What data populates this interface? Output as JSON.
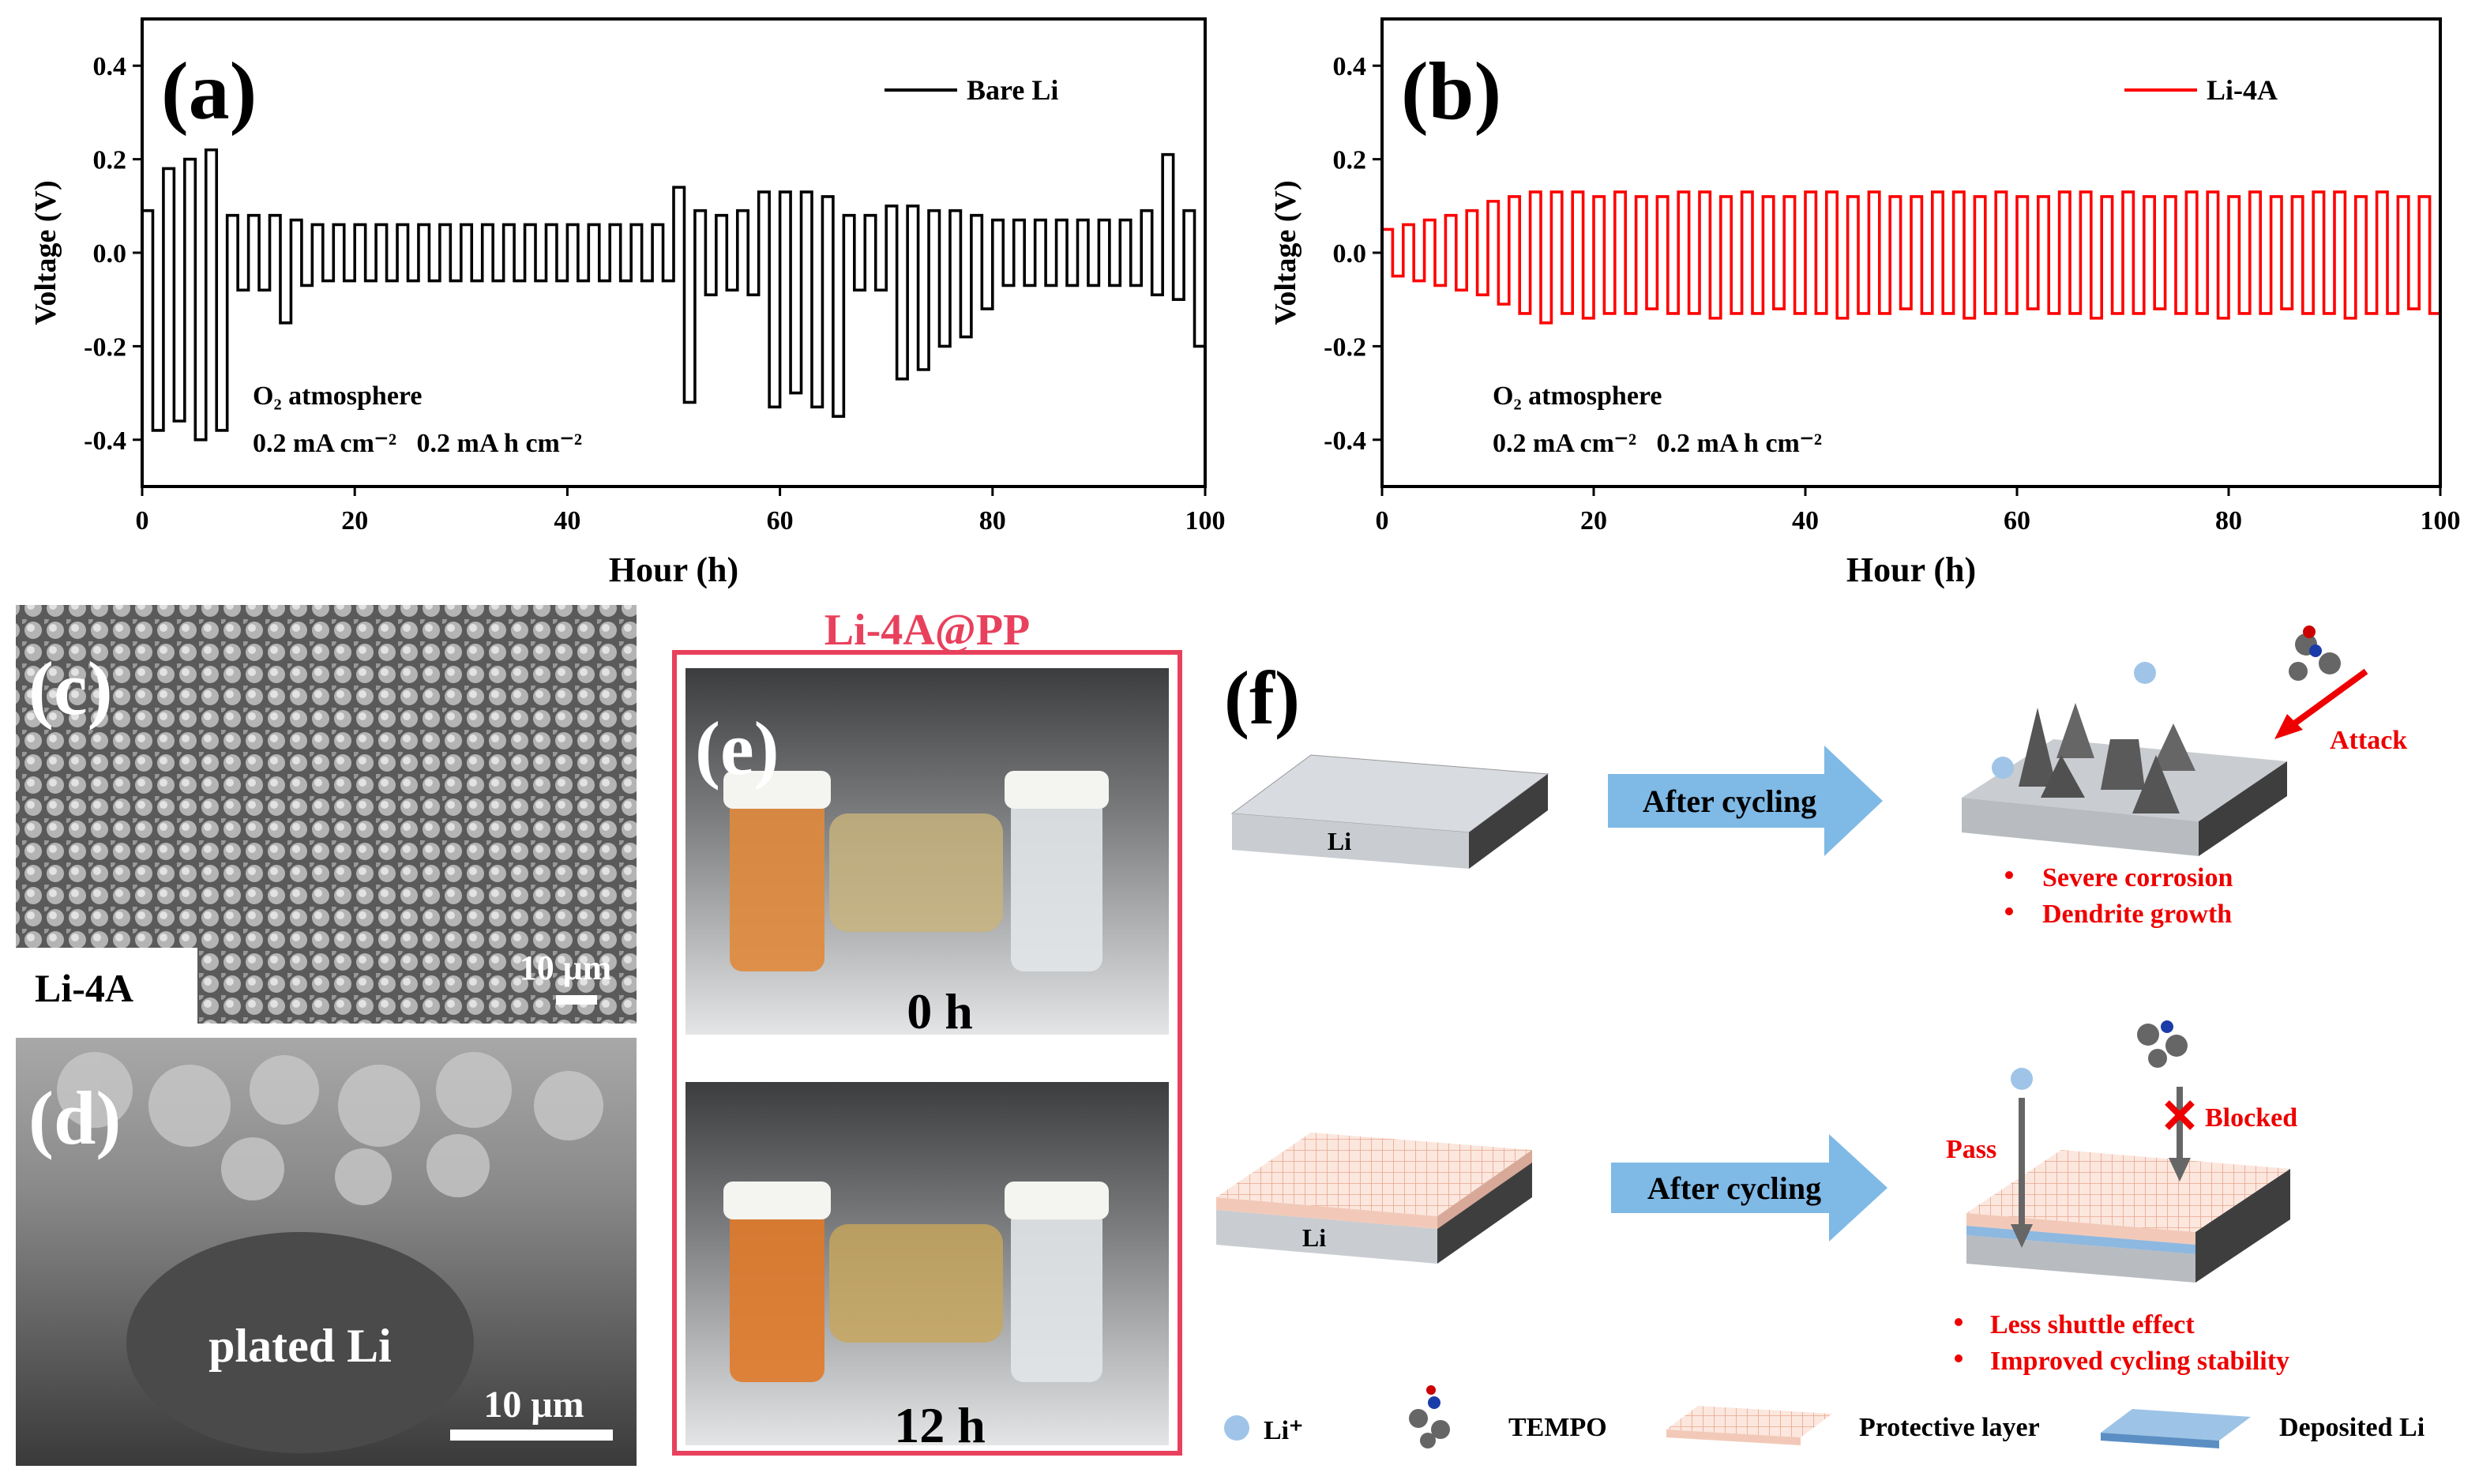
{
  "chart_data": [
    {
      "type": "line",
      "panel_label": "(a)",
      "ylabel": "Voltage (V)",
      "xlabel": "Hour (h)",
      "step": true,
      "x": [
        0,
        1,
        2,
        3,
        4,
        5,
        6,
        7,
        8,
        9,
        10,
        11,
        12,
        13,
        14,
        15,
        16,
        17,
        18,
        19,
        20,
        21,
        22,
        23,
        24,
        25,
        26,
        27,
        28,
        29,
        30,
        31,
        32,
        33,
        34,
        35,
        36,
        37,
        38,
        39,
        40,
        41,
        42,
        43,
        44,
        45,
        46,
        47,
        48,
        49,
        50,
        51,
        52,
        53,
        54,
        55,
        56,
        57,
        58,
        59,
        60,
        61,
        62,
        63,
        64,
        65,
        66,
        67,
        68,
        69,
        70,
        71,
        72,
        73,
        74,
        75,
        76,
        77,
        78,
        79,
        80,
        81,
        82,
        83,
        84,
        85,
        86,
        87,
        88,
        89,
        90,
        91,
        92,
        93,
        94,
        95,
        96,
        97,
        98,
        99
      ],
      "series": [
        {
          "name": "Bare Li",
          "color": "#000000",
          "values": [
            0.09,
            -0.38,
            0.18,
            -0.36,
            0.2,
            -0.4,
            0.22,
            -0.38,
            0.08,
            -0.08,
            0.08,
            -0.08,
            0.08,
            -0.15,
            0.07,
            -0.07,
            0.06,
            -0.06,
            0.06,
            -0.06,
            0.06,
            -0.06,
            0.06,
            -0.06,
            0.06,
            -0.06,
            0.06,
            -0.06,
            0.06,
            -0.06,
            0.06,
            -0.06,
            0.06,
            -0.06,
            0.06,
            -0.06,
            0.06,
            -0.06,
            0.06,
            -0.06,
            0.06,
            -0.06,
            0.06,
            -0.06,
            0.06,
            -0.06,
            0.06,
            -0.06,
            0.06,
            -0.06,
            0.14,
            -0.32,
            0.09,
            -0.09,
            0.08,
            -0.08,
            0.09,
            -0.09,
            0.13,
            -0.33,
            0.13,
            -0.3,
            0.13,
            -0.33,
            0.12,
            -0.35,
            0.08,
            -0.08,
            0.08,
            -0.08,
            0.1,
            -0.27,
            0.1,
            -0.25,
            0.09,
            -0.2,
            0.09,
            -0.18,
            0.08,
            -0.12,
            0.07,
            -0.07,
            0.07,
            -0.07,
            0.07,
            -0.07,
            0.07,
            -0.07,
            0.07,
            -0.07,
            0.07,
            -0.07,
            0.07,
            -0.07,
            0.09,
            -0.09,
            0.21,
            -0.1,
            0.09,
            -0.2
          ]
        }
      ],
      "xlim": [
        0,
        100
      ],
      "ylim": [
        -0.5,
        0.5
      ],
      "xticks": [
        0,
        20,
        40,
        60,
        80,
        100
      ],
      "yticks": [
        -0.4,
        -0.2,
        {
          "value": 0,
          "label": "0.0"
        },
        0.2,
        0.4
      ],
      "annotations": [
        "O₂ atmosphere",
        "0.2 mA cm⁻²   0.2 mA h cm⁻²"
      ]
    },
    {
      "type": "line",
      "panel_label": "(b)",
      "ylabel": "Voltage (V)",
      "xlabel": "Hour (h)",
      "step": true,
      "x": [
        0,
        1,
        2,
        3,
        4,
        5,
        6,
        7,
        8,
        9,
        10,
        11,
        12,
        13,
        14,
        15,
        16,
        17,
        18,
        19,
        20,
        21,
        22,
        23,
        24,
        25,
        26,
        27,
        28,
        29,
        30,
        31,
        32,
        33,
        34,
        35,
        36,
        37,
        38,
        39,
        40,
        41,
        42,
        43,
        44,
        45,
        46,
        47,
        48,
        49,
        50,
        51,
        52,
        53,
        54,
        55,
        56,
        57,
        58,
        59,
        60,
        61,
        62,
        63,
        64,
        65,
        66,
        67,
        68,
        69,
        70,
        71,
        72,
        73,
        74,
        75,
        76,
        77,
        78,
        79,
        80,
        81,
        82,
        83,
        84,
        85,
        86,
        87,
        88,
        89,
        90,
        91,
        92,
        93,
        94,
        95,
        96,
        97,
        98,
        99
      ],
      "series": [
        {
          "name": "Li-4A",
          "color": "#ff0000",
          "values": [
            0.05,
            -0.05,
            0.06,
            -0.06,
            0.07,
            -0.07,
            0.08,
            -0.08,
            0.09,
            -0.09,
            0.11,
            -0.11,
            0.12,
            -0.13,
            0.13,
            -0.15,
            0.13,
            -0.13,
            0.13,
            -0.14,
            0.12,
            -0.13,
            0.13,
            -0.13,
            0.12,
            -0.12,
            0.12,
            -0.13,
            0.13,
            -0.13,
            0.13,
            -0.14,
            0.12,
            -0.13,
            0.13,
            -0.13,
            0.12,
            -0.12,
            0.12,
            -0.13,
            0.13,
            -0.13,
            0.13,
            -0.14,
            0.12,
            -0.13,
            0.13,
            -0.13,
            0.12,
            -0.12,
            0.12,
            -0.13,
            0.13,
            -0.13,
            0.13,
            -0.14,
            0.12,
            -0.13,
            0.13,
            -0.13,
            0.12,
            -0.12,
            0.12,
            -0.13,
            0.13,
            -0.13,
            0.13,
            -0.14,
            0.12,
            -0.13,
            0.13,
            -0.13,
            0.12,
            -0.12,
            0.12,
            -0.13,
            0.13,
            -0.13,
            0.13,
            -0.14,
            0.12,
            -0.13,
            0.13,
            -0.13,
            0.12,
            -0.12,
            0.12,
            -0.13,
            0.13,
            -0.13,
            0.13,
            -0.14,
            0.12,
            -0.13,
            0.13,
            -0.13,
            0.12,
            -0.12,
            0.12,
            -0.13
          ]
        }
      ],
      "xlim": [
        0,
        100
      ],
      "ylim": [
        -0.5,
        0.5
      ],
      "xticks": [
        0,
        20,
        40,
        60,
        80,
        100
      ],
      "yticks": [
        -0.4,
        -0.2,
        {
          "value": 0,
          "label": "0.0"
        },
        0.2,
        0.4
      ],
      "annotations": [
        "O₂ atmosphere",
        "0.2 mA cm⁻²   0.2 mA h cm⁻²"
      ]
    }
  ],
  "images": {
    "c": {
      "label": "(c)",
      "sample": "Li-4A",
      "scale_bar": "10 μm"
    },
    "d": {
      "label": "(d)",
      "caption": "plated Li",
      "scale_bar": "10 μm"
    },
    "e": {
      "title": "Li-4A@PP",
      "label": "(e)",
      "times": [
        "0 h",
        "12 h"
      ]
    }
  },
  "schematic": {
    "label": "(f)",
    "material": "Li",
    "process": "After cycling",
    "bare": {
      "attack": "Attack",
      "effects": [
        "Severe corrosion",
        "Dendrite growth"
      ]
    },
    "protected": {
      "pass": "Pass",
      "blocked": "Blocked",
      "effects": [
        "Less shuttle effect",
        "Improved cycling stability"
      ]
    },
    "legend": [
      "Li⁺",
      "TEMPO",
      "Protective layer",
      "Deposited Li"
    ]
  }
}
